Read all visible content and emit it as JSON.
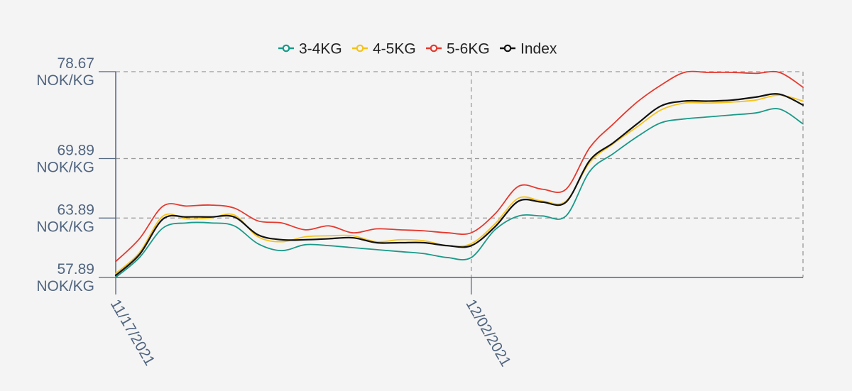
{
  "chart_data": {
    "type": "line",
    "y_unit": "NOK/KG",
    "ylim": [
      57.89,
      78.67
    ],
    "y_ticks": [
      {
        "value": 78.67,
        "label": "78.67"
      },
      {
        "value": 69.89,
        "label": "69.89"
      },
      {
        "value": 63.89,
        "label": "63.89"
      },
      {
        "value": 57.89,
        "label": "57.89"
      }
    ],
    "x_ticks": [
      {
        "index": 0,
        "label": "11/17/2021"
      },
      {
        "index": 15,
        "label": "12/02/2021"
      }
    ],
    "n_points": 30,
    "grid": true,
    "legend_position": "top-center",
    "series": [
      {
        "name": "3-4KG",
        "color": "#1a9988",
        "values": [
          57.9,
          59.9,
          62.9,
          63.4,
          63.4,
          63.1,
          61.3,
          60.6,
          61.2,
          61.1,
          60.9,
          60.7,
          60.5,
          60.3,
          59.9,
          59.9,
          62.7,
          64.1,
          64.1,
          64.1,
          68.6,
          70.4,
          72.1,
          73.5,
          73.9,
          74.1,
          74.3,
          74.5,
          74.9,
          73.4
        ]
      },
      {
        "name": "4-5KG",
        "color": "#f5c31c",
        "values": [
          58.3,
          60.4,
          64.1,
          63.8,
          63.9,
          64.2,
          62.0,
          61.5,
          62.0,
          62.1,
          62.1,
          61.5,
          61.7,
          61.6,
          61.1,
          61.3,
          63.3,
          65.9,
          65.6,
          65.6,
          69.5,
          71.4,
          73.1,
          74.8,
          75.5,
          75.5,
          75.6,
          75.8,
          76.3,
          75.7
        ]
      },
      {
        "name": "5-6KG",
        "color": "#e5392e",
        "values": [
          59.5,
          61.8,
          65.1,
          65.1,
          65.2,
          64.9,
          63.6,
          63.4,
          62.7,
          63.1,
          62.4,
          62.8,
          62.7,
          62.6,
          62.4,
          62.4,
          64.3,
          67.1,
          66.8,
          66.8,
          71.0,
          73.4,
          75.6,
          77.3,
          78.6,
          78.6,
          78.6,
          78.5,
          78.6,
          77.1
        ]
      },
      {
        "name": "Index",
        "color": "#111111",
        "values": [
          58.1,
          60.2,
          63.8,
          64.0,
          64.0,
          64.0,
          62.2,
          61.7,
          61.7,
          61.8,
          61.9,
          61.4,
          61.4,
          61.4,
          61.1,
          61.1,
          63.0,
          65.6,
          65.5,
          65.5,
          69.7,
          71.5,
          73.4,
          75.2,
          75.7,
          75.7,
          75.8,
          76.1,
          76.4,
          75.3
        ]
      }
    ]
  }
}
